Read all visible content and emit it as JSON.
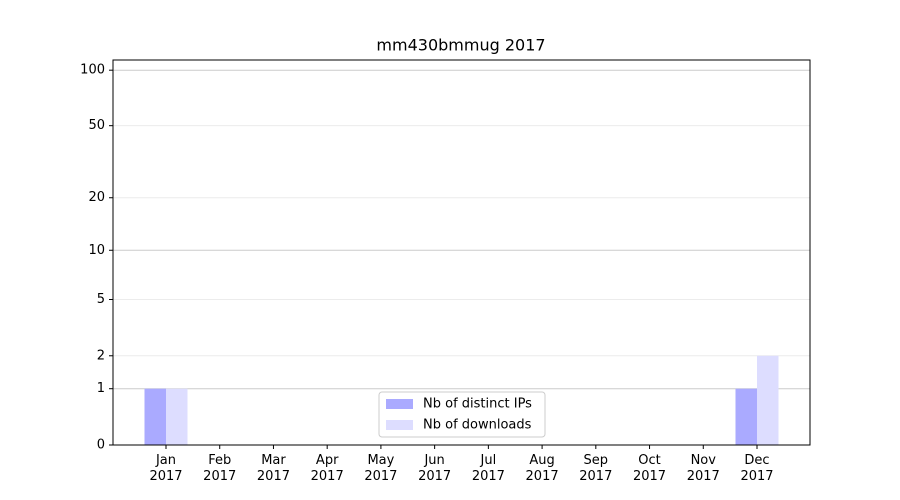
{
  "chart_data": {
    "type": "bar",
    "title": "mm430bmmug 2017",
    "categories": [
      "Jan\n2017",
      "Feb\n2017",
      "Mar\n2017",
      "Apr\n2017",
      "May\n2017",
      "Jun\n2017",
      "Jul\n2017",
      "Aug\n2017",
      "Sep\n2017",
      "Oct\n2017",
      "Nov\n2017",
      "Dec\n2017"
    ],
    "series": [
      {
        "name": "Nb of distinct IPs",
        "color": "#aaaaff",
        "values": [
          1,
          0,
          0,
          0,
          0,
          0,
          0,
          0,
          0,
          0,
          0,
          1
        ]
      },
      {
        "name": "Nb of downloads",
        "color": "#ddddff",
        "values": [
          1,
          0,
          0,
          0,
          0,
          0,
          0,
          0,
          0,
          0,
          0,
          2
        ]
      }
    ],
    "yscale": "log1p",
    "ylim": [
      0,
      113.5
    ],
    "yticks": [
      0,
      1,
      2,
      5,
      10,
      20,
      50,
      100
    ],
    "grid": true,
    "legend": "lower center"
  }
}
